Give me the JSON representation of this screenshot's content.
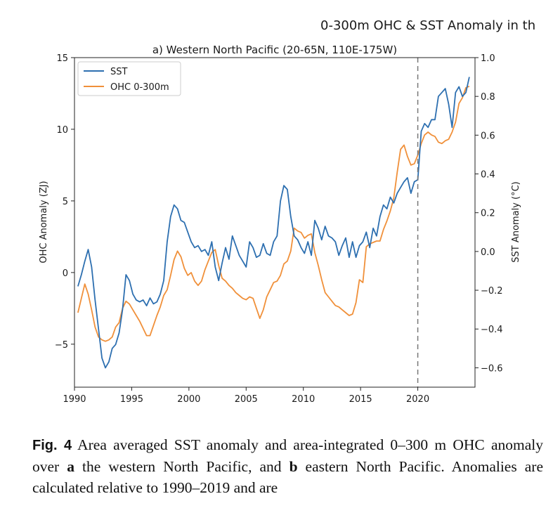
{
  "figure": {
    "suptitle": "0-300m OHC & SST Anomaly in th",
    "panel_title": "a) Western North Pacific (20-65N, 110E-175W)"
  },
  "chart_data": {
    "type": "line",
    "title": "a) Western North Pacific (20-65N, 110E-175W)",
    "xlabel": "",
    "ylabel": "OHC Anomaly (ZJ)",
    "y2label": "SST Anomaly (°C)",
    "xlim": [
      1990,
      2025
    ],
    "ylim": [
      -8,
      15
    ],
    "y2lim": [
      -0.7,
      1.0
    ],
    "xticks": [
      1990,
      1995,
      2000,
      2005,
      2010,
      2015,
      2020
    ],
    "yticks": [
      -5,
      0,
      5,
      10,
      15
    ],
    "y2ticks": [
      "−0.6",
      "−0.4",
      "−0.2",
      "0.0",
      "0.2",
      "0.4",
      "0.6",
      "0.8",
      "1.0"
    ],
    "y2tick_values": [
      -0.6,
      -0.4,
      -0.2,
      0.0,
      0.2,
      0.4,
      0.6,
      0.8,
      1.0
    ],
    "vline_x": 2020,
    "grid": false,
    "legend_position": "top-left",
    "series": [
      {
        "name": "SST",
        "axis": "right",
        "color": "#2d6fb0",
        "x": [
          1990.3,
          1990.6,
          1990.9,
          1991.2,
          1991.5,
          1991.8,
          1992.1,
          1992.4,
          1992.7,
          1993.0,
          1993.3,
          1993.6,
          1993.9,
          1994.2,
          1994.5,
          1994.8,
          1995.1,
          1995.4,
          1995.7,
          1996.0,
          1996.3,
          1996.6,
          1996.9,
          1997.2,
          1997.5,
          1997.8,
          1998.1,
          1998.4,
          1998.7,
          1999.0,
          1999.3,
          1999.6,
          1999.9,
          2000.2,
          2000.5,
          2000.8,
          2001.1,
          2001.4,
          2001.7,
          2002.0,
          2002.3,
          2002.6,
          2002.9,
          2003.2,
          2003.5,
          2003.8,
          2004.1,
          2004.4,
          2004.7,
          2005.0,
          2005.3,
          2005.6,
          2005.9,
          2006.2,
          2006.5,
          2006.8,
          2007.1,
          2007.4,
          2007.7,
          2008.0,
          2008.3,
          2008.6,
          2008.9,
          2009.2,
          2009.5,
          2009.8,
          2010.1,
          2010.4,
          2010.7,
          2011.0,
          2011.3,
          2011.6,
          2011.9,
          2012.2,
          2012.5,
          2012.8,
          2013.1,
          2013.4,
          2013.7,
          2014.0,
          2014.3,
          2014.6,
          2014.9,
          2015.2,
          2015.5,
          2015.8,
          2016.1,
          2016.4,
          2016.7,
          2017.0,
          2017.3,
          2017.6,
          2017.9,
          2018.2,
          2018.5,
          2018.8,
          2019.1,
          2019.4,
          2019.7,
          2020.0,
          2020.3,
          2020.6,
          2020.9,
          2021.2,
          2021.5,
          2021.8,
          2022.1,
          2022.4,
          2022.7,
          2023.0,
          2023.3,
          2023.6,
          2023.9,
          2024.2,
          2024.5
        ],
        "values": [
          -0.18,
          -0.12,
          -0.05,
          0.01,
          -0.08,
          -0.25,
          -0.4,
          -0.55,
          -0.6,
          -0.57,
          -0.5,
          -0.48,
          -0.42,
          -0.3,
          -0.12,
          -0.15,
          -0.22,
          -0.25,
          -0.26,
          -0.25,
          -0.28,
          -0.24,
          -0.27,
          -0.26,
          -0.22,
          -0.15,
          0.05,
          0.18,
          0.24,
          0.22,
          0.16,
          0.15,
          0.1,
          0.05,
          0.02,
          0.03,
          0.0,
          0.01,
          -0.02,
          0.05,
          -0.08,
          -0.15,
          -0.06,
          0.02,
          -0.04,
          0.08,
          0.03,
          -0.02,
          -0.05,
          -0.08,
          0.05,
          0.02,
          -0.03,
          -0.02,
          0.04,
          -0.01,
          -0.02,
          0.05,
          0.08,
          0.26,
          0.34,
          0.32,
          0.18,
          0.08,
          0.06,
          0.02,
          -0.01,
          0.05,
          -0.02,
          0.16,
          0.12,
          0.06,
          0.13,
          0.08,
          0.07,
          0.05,
          -0.02,
          0.03,
          0.07,
          -0.03,
          0.05,
          -0.03,
          0.03,
          0.05,
          0.1,
          0.02,
          0.12,
          0.08,
          0.18,
          0.24,
          0.22,
          0.28,
          0.25,
          0.3,
          0.33,
          0.36,
          0.38,
          0.3,
          0.36,
          0.37,
          0.62,
          0.66,
          0.64,
          0.68,
          0.68,
          0.8,
          0.82,
          0.84,
          0.76,
          0.64,
          0.82,
          0.85,
          0.8,
          0.82,
          0.9
        ]
      },
      {
        "name": "OHC 0-300m",
        "axis": "left",
        "color": "#f0903a",
        "x": [
          1990.3,
          1990.6,
          1990.9,
          1991.2,
          1991.5,
          1991.8,
          1992.1,
          1992.4,
          1992.7,
          1993.0,
          1993.3,
          1993.6,
          1993.9,
          1994.2,
          1994.5,
          1994.8,
          1995.1,
          1995.4,
          1995.7,
          1996.0,
          1996.3,
          1996.6,
          1996.9,
          1997.2,
          1997.5,
          1997.8,
          1998.1,
          1998.4,
          1998.7,
          1999.0,
          1999.3,
          1999.6,
          1999.9,
          2000.2,
          2000.5,
          2000.8,
          2001.1,
          2001.4,
          2001.7,
          2002.0,
          2002.3,
          2002.6,
          2002.9,
          2003.2,
          2003.5,
          2003.8,
          2004.1,
          2004.4,
          2004.7,
          2005.0,
          2005.3,
          2005.6,
          2005.9,
          2006.2,
          2006.5,
          2006.8,
          2007.1,
          2007.4,
          2007.7,
          2008.0,
          2008.3,
          2008.6,
          2008.9,
          2009.2,
          2009.5,
          2009.8,
          2010.1,
          2010.4,
          2010.7,
          2011.0,
          2011.3,
          2011.6,
          2011.9,
          2012.2,
          2012.5,
          2012.8,
          2013.1,
          2013.4,
          2013.7,
          2014.0,
          2014.3,
          2014.6,
          2014.9,
          2015.2,
          2015.5,
          2015.8,
          2016.1,
          2016.4,
          2016.7,
          2017.0,
          2017.3,
          2017.6,
          2017.9,
          2018.2,
          2018.5,
          2018.8,
          2019.1,
          2019.4,
          2019.7,
          2020.0,
          2020.3,
          2020.6,
          2020.9,
          2021.2,
          2021.5,
          2021.8,
          2022.1,
          2022.4,
          2022.7,
          2023.0,
          2023.3,
          2023.6,
          2023.9,
          2024.2,
          2024.5
        ],
        "values": [
          -2.8,
          -1.8,
          -0.8,
          -1.5,
          -2.6,
          -3.8,
          -4.5,
          -4.7,
          -4.8,
          -4.7,
          -4.5,
          -3.8,
          -3.5,
          -2.5,
          -2.0,
          -2.2,
          -2.6,
          -3.0,
          -3.4,
          -3.9,
          -4.4,
          -4.4,
          -3.7,
          -3.0,
          -2.4,
          -1.6,
          -1.2,
          -0.2,
          0.9,
          1.5,
          1.1,
          0.3,
          -0.2,
          0.0,
          -0.6,
          -0.9,
          -0.6,
          0.2,
          0.8,
          1.4,
          1.6,
          0.5,
          -0.4,
          -0.6,
          -0.9,
          -1.1,
          -1.4,
          -1.6,
          -1.8,
          -1.9,
          -1.7,
          -1.8,
          -2.5,
          -3.2,
          -2.6,
          -1.7,
          -1.2,
          -0.7,
          -0.6,
          -0.2,
          0.6,
          0.8,
          1.5,
          3.1,
          2.9,
          2.8,
          2.4,
          2.6,
          2.7,
          1.4,
          0.5,
          -0.5,
          -1.4,
          -1.7,
          -2.0,
          -2.3,
          -2.4,
          -2.6,
          -2.8,
          -3.0,
          -2.9,
          -2.1,
          -0.5,
          -0.7,
          1.8,
          2.0,
          2.1,
          2.2,
          2.2,
          3.0,
          3.6,
          4.3,
          5.2,
          7.0,
          8.6,
          8.9,
          8.1,
          7.5,
          7.6,
          8.2,
          9.0,
          9.6,
          9.8,
          9.6,
          9.5,
          9.1,
          9.0,
          9.2,
          9.3,
          9.8,
          10.5,
          11.8,
          12.2,
          12.9,
          13.0
        ]
      }
    ]
  },
  "caption": {
    "fig_label": "Fig. 4",
    "text_1": "  Area averaged SST anomaly and area-integrated 0–300 m OHC anomaly over ",
    "bold_a": "a",
    "text_2": " the western North Pacific, and ",
    "bold_b": "b",
    "text_3": " eastern North Pacific. Anomalies are calculated relative to 1990–2019 and are"
  }
}
